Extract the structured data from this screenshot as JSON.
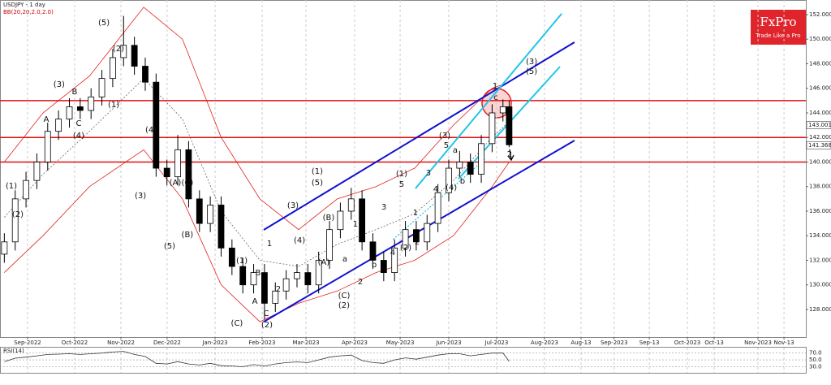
{
  "chart_data": {
    "type": "candlestick",
    "title": "USDJPY - 1 day",
    "indicator_label": "BB(20,20,2.0,2.0)",
    "x": [
      -15,
      -8,
      -1,
      6,
      13,
      20,
      27,
      34,
      41,
      48,
      55,
      62,
      69,
      76,
      83,
      90,
      97,
      104,
      111,
      118,
      125,
      132,
      139,
      146,
      153,
      160,
      167,
      174,
      181,
      188,
      195,
      202,
      209,
      216,
      223,
      230,
      237,
      244,
      251,
      258,
      265,
      272,
      279,
      286,
      293,
      300,
      307,
      311
    ],
    "open": [
      132.5,
      133.5,
      137,
      138.5,
      140,
      142.5,
      143.5,
      144.5,
      144.2,
      145.3,
      146.8,
      148.5,
      149.5,
      147.8,
      146.5,
      139.5,
      138.8,
      141,
      137,
      135,
      136.5,
      133,
      131.5,
      130,
      131,
      128.5,
      129.5,
      130.5,
      131,
      130,
      132,
      134.5,
      136,
      137,
      133.5,
      132,
      131,
      133,
      134.5,
      133.5,
      135,
      137.5,
      139.5,
      140,
      139,
      141.5,
      144,
      144.5
    ],
    "high": [
      134.2,
      137.7,
      139.2,
      140.7,
      143.2,
      144.2,
      145.2,
      145.2,
      146,
      147.5,
      149.2,
      151.9,
      150.2,
      148.5,
      147.2,
      140.2,
      142.2,
      141.7,
      137.7,
      137.2,
      137.2,
      133.7,
      132.2,
      131.7,
      131.7,
      130.2,
      131.2,
      131.7,
      131.7,
      132.7,
      135.2,
      136.7,
      137.9,
      137.7,
      134.2,
      132.7,
      133.7,
      135.2,
      135.2,
      135.7,
      138.2,
      140.2,
      140.9,
      140.7,
      142.2,
      144.7,
      145.1,
      145
    ],
    "low": [
      131.8,
      132.8,
      136.3,
      137.8,
      139.3,
      141.8,
      142.8,
      143.5,
      143.5,
      144.6,
      146.1,
      147.8,
      147.1,
      145.8,
      138.8,
      138.1,
      138.1,
      136.3,
      134.3,
      134.3,
      132.3,
      130.8,
      129.3,
      129.3,
      127.2,
      127.8,
      128.8,
      129.8,
      129.3,
      129.3,
      131.3,
      133.8,
      135.3,
      132.8,
      131.3,
      130.3,
      130.3,
      132.3,
      132.8,
      132.8,
      134.3,
      136.8,
      138.8,
      138.3,
      138.3,
      140.8,
      143.3,
      141.2
    ],
    "close": [
      133.5,
      137,
      138.5,
      140,
      142.5,
      143.5,
      144.5,
      144.2,
      145.3,
      146.8,
      148.5,
      149.5,
      147.8,
      146.5,
      139.5,
      138.8,
      141,
      137,
      135,
      136.5,
      133,
      131.5,
      130,
      131,
      128.5,
      129.5,
      130.5,
      131,
      130,
      132,
      134.5,
      136,
      137,
      133.5,
      132,
      131,
      133,
      134.5,
      133.5,
      135,
      137.5,
      139.5,
      140,
      139,
      141.5,
      144,
      144.5,
      141.4
    ],
    "up_color": "#ffffff",
    "down_color": "#000000",
    "xlim": [
      -17.8,
      502.6
    ],
    "ylim": [
      125.75,
      153.19
    ],
    "grid": true,
    "xticks": [
      {
        "value": 0,
        "label": "Sep-2022"
      },
      {
        "value": 30.4,
        "label": "Oct-2022"
      },
      {
        "value": 60.3,
        "label": "Nov-2022"
      },
      {
        "value": 90.1,
        "label": "Dec-2022"
      },
      {
        "value": 121.1,
        "label": "Jan-2023"
      },
      {
        "value": 151.5,
        "label": "Feb-2023"
      },
      {
        "value": 179.8,
        "label": "Mar-2023"
      },
      {
        "value": 211.2,
        "label": "Apr-2023"
      },
      {
        "value": 240.6,
        "label": "May-2023"
      },
      {
        "value": 272,
        "label": "Jun-2023"
      },
      {
        "value": 302.9,
        "label": "Jul-2023"
      },
      {
        "value": 333.8,
        "label": "Aug-2023"
      },
      {
        "value": 357.4,
        "label": "Aug-13"
      },
      {
        "value": 378.8,
        "label": "Sep-2023"
      },
      {
        "value": 401.5,
        "label": "Sep-13"
      },
      {
        "value": 426.1,
        "label": "Oct-2023"
      },
      {
        "value": 443.4,
        "label": "Oct-13"
      },
      {
        "value": 471.7,
        "label": "Nov-2023"
      },
      {
        "value": 488.5,
        "label": "Nov-13"
      }
    ],
    "yticks": [
      {
        "value": 128,
        "label": "128.000"
      },
      {
        "value": 130,
        "label": "130.000"
      },
      {
        "value": 132,
        "label": "132.000"
      },
      {
        "value": 134,
        "label": "134.000"
      },
      {
        "value": 136,
        "label": "136.000"
      },
      {
        "value": 138,
        "label": "138.000"
      },
      {
        "value": 140,
        "label": "140.000"
      },
      {
        "value": 142,
        "label": "142.000"
      },
      {
        "value": 144,
        "label": "144.000"
      },
      {
        "value": 146,
        "label": "146.000"
      },
      {
        "value": 148,
        "label": "148.000"
      },
      {
        "value": 150,
        "label": "150.000"
      },
      {
        "value": 152,
        "label": "152.000"
      }
    ],
    "bollinger": {
      "color": "#e02020",
      "x": [
        -15,
        10,
        40,
        75,
        100,
        125,
        150,
        175,
        200,
        225,
        250,
        275,
        300,
        311
      ],
      "upper": [
        140,
        144,
        147,
        152.6,
        150,
        142,
        137,
        134.5,
        137,
        138,
        139.5,
        143,
        146,
        146.5
      ],
      "middle": [
        135.5,
        139,
        142.5,
        146.8,
        143.5,
        136,
        132,
        131.5,
        133.3,
        134.5,
        135.8,
        138.5,
        142,
        143.3
      ],
      "lower": [
        131,
        134,
        138,
        141,
        137,
        130,
        127,
        128.5,
        129.5,
        131,
        132,
        134,
        138,
        140
      ]
    },
    "levels": {
      "color": "#e01010",
      "values": [
        145,
        142,
        140
      ]
    },
    "trendlines": [
      {
        "color": "#1010d0",
        "x": [
          152.5,
          353.2
        ],
        "y": [
          134.48,
          149.75
        ]
      },
      {
        "color": "#1010d0",
        "x": [
          152.5,
          353.2
        ],
        "y": [
          127,
          141.75
        ]
      },
      {
        "color": "#22c4e8",
        "x": [
          250.5,
          344.9
        ],
        "y": [
          137.85,
          152.07
        ]
      },
      {
        "color": "#22c4e8",
        "x": [
          278.3,
          343.8
        ],
        "y": [
          138.64,
          147.77
        ]
      },
      {
        "color": "#22c4e8",
        "x": [
          236,
          296
        ],
        "y": [
          133.7,
          140.3
        ],
        "style": "dotted"
      }
    ],
    "price_tags": [
      143.001,
      141.368
    ],
    "annotations": [
      {
        "text": "(1)",
        "x": -10.5,
        "y": 138.05
      },
      {
        "text": "(2)",
        "x": -6.3,
        "y": 135.74
      },
      {
        "text": "(3)",
        "x": 20.4,
        "y": 146.31
      },
      {
        "text": "B",
        "x": 30.4,
        "y": 145.72
      },
      {
        "text": "A",
        "x": 12.1,
        "y": 143.47
      },
      {
        "text": "C",
        "x": 33,
        "y": 143.14
      },
      {
        "text": "(4)",
        "x": 33,
        "y": 142.15
      },
      {
        "text": "(5)",
        "x": 49.3,
        "y": 151.34
      },
      {
        "text": "(2)",
        "x": 58.7,
        "y": 149.22
      },
      {
        "text": "(1)",
        "x": 55.6,
        "y": 144.66
      },
      {
        "text": "(4)",
        "x": 79.7,
        "y": 142.61
      },
      {
        "text": "(3)",
        "x": 72.9,
        "y": 137.26
      },
      {
        "text": "(A)",
        "x": 95.4,
        "y": 138.31
      },
      {
        "text": "B",
        "x": 104.3,
        "y": 139.44
      },
      {
        "text": "(C)",
        "x": 103.2,
        "y": 138.31
      },
      {
        "text": "(B)",
        "x": 103.2,
        "y": 134.08
      },
      {
        "text": "(5)",
        "x": 91.7,
        "y": 133.16
      },
      {
        "text": "(1)",
        "x": 138.4,
        "y": 131.97
      },
      {
        "text": "B",
        "x": 148.8,
        "y": 130.98
      },
      {
        "text": "A",
        "x": 146.8,
        "y": 128.66
      },
      {
        "text": "C",
        "x": 154.1,
        "y": 127.67
      },
      {
        "text": "(C)",
        "x": 135.2,
        "y": 126.88
      },
      {
        "text": "(2)",
        "x": 154.6,
        "y": 126.74
      },
      {
        "text": "1",
        "x": 156.2,
        "y": 133.36
      },
      {
        "text": "2",
        "x": 161.9,
        "y": 129.65
      },
      {
        "text": "(3)",
        "x": 171.4,
        "y": 136.46
      },
      {
        "text": "(4)",
        "x": 175.6,
        "y": 133.62
      },
      {
        "text": "(1)",
        "x": 187.1,
        "y": 139.24
      },
      {
        "text": "(5)",
        "x": 187.1,
        "y": 138.31
      },
      {
        "text": "(B)",
        "x": 194.4,
        "y": 135.47
      },
      {
        "text": "(A)",
        "x": 191.3,
        "y": 131.83
      },
      {
        "text": "a",
        "x": 204.9,
        "y": 132.1
      },
      {
        "text": "b",
        "x": 223.8,
        "y": 131.64
      },
      {
        "text": "(C)",
        "x": 204.4,
        "y": 129.12
      },
      {
        "text": "(2)",
        "x": 204.4,
        "y": 128.33
      },
      {
        "text": "1",
        "x": 211.7,
        "y": 134.94
      },
      {
        "text": "2",
        "x": 214.9,
        "y": 130.25
      },
      {
        "text": "3",
        "x": 230.1,
        "y": 136.33
      },
      {
        "text": "4",
        "x": 235.8,
        "y": 132.63
      },
      {
        "text": "5",
        "x": 241.6,
        "y": 138.18
      },
      {
        "text": "(1)",
        "x": 241.6,
        "y": 139.04
      },
      {
        "text": "(2)",
        "x": 244.2,
        "y": 133.02
      },
      {
        "text": "1",
        "x": 250.5,
        "y": 135.87
      },
      {
        "text": "2",
        "x": 251.6,
        "y": 133.49
      },
      {
        "text": "3",
        "x": 258.9,
        "y": 139.11
      },
      {
        "text": "4",
        "x": 263.6,
        "y": 137.79
      },
      {
        "text": "5",
        "x": 270.4,
        "y": 141.36
      },
      {
        "text": "(3)",
        "x": 269.4,
        "y": 142.15
      },
      {
        "text": "(4)",
        "x": 273.6,
        "y": 137.92
      },
      {
        "text": "a",
        "x": 276.2,
        "y": 140.96
      },
      {
        "text": "b",
        "x": 280.9,
        "y": 138.45
      },
      {
        "text": "1",
        "x": 301.9,
        "y": 146.18
      },
      {
        "text": "c",
        "x": 302.4,
        "y": 145.26
      },
      {
        "text": "2",
        "x": 311.3,
        "y": 140.63
      },
      {
        "text": "(3)",
        "x": 325.5,
        "y": 148.17
      },
      {
        "text": "(5)",
        "x": 325.5,
        "y": 147.37
      }
    ],
    "rsi": {
      "title": "RSI(14)",
      "color": "#333333",
      "ylim": [
        12,
        86
      ],
      "yticks": [
        {
          "value": 70,
          "label": "70.0"
        },
        {
          "value": 50,
          "label": "50.0"
        },
        {
          "value": 30,
          "label": "30.0"
        }
      ],
      "values": [
        45,
        55,
        58,
        62,
        66,
        67,
        68,
        66,
        68,
        70,
        73,
        75,
        66,
        60,
        40,
        38,
        45,
        38,
        35,
        40,
        33,
        32,
        30,
        36,
        32,
        38,
        42,
        44,
        42,
        50,
        58,
        62,
        64,
        48,
        42,
        40,
        50,
        56,
        52,
        58,
        64,
        68,
        68,
        62,
        66,
        70,
        70,
        46
      ]
    },
    "logo": {
      "name": "FxPro",
      "tagline": "Trade Like a Pro"
    }
  }
}
